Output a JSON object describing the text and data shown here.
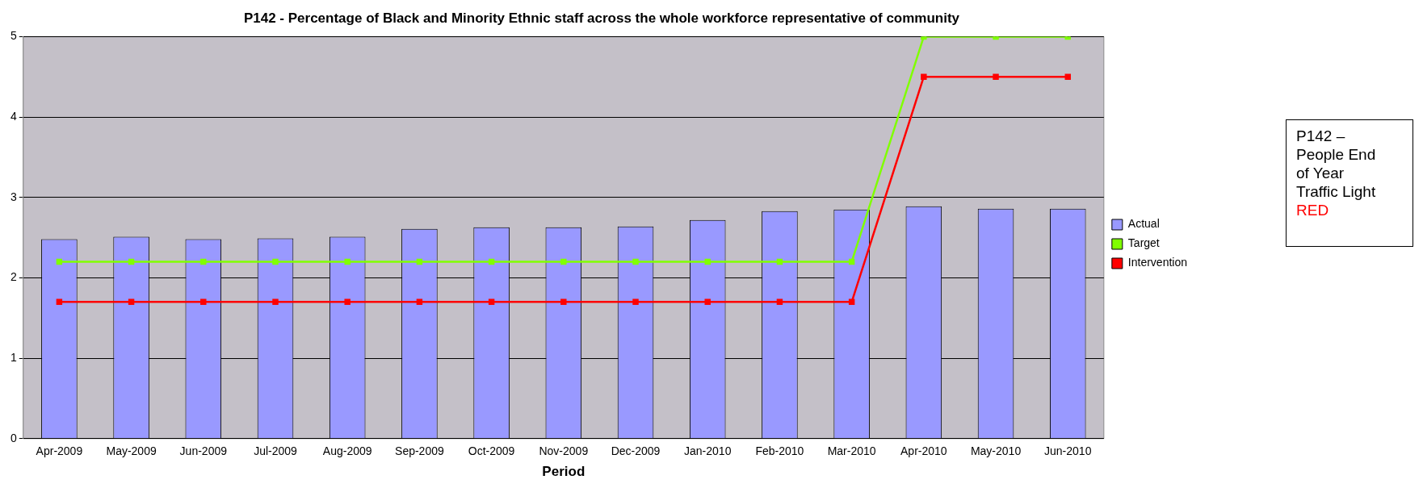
{
  "chart_data": {
    "type": "bar",
    "title": "P142 - Percentage of Black and Minority Ethnic staff across the whole workforce representative of community",
    "xlabel": "Period",
    "categories": [
      "Apr-2009",
      "May-2009",
      "Jun-2009",
      "Jul-2009",
      "Aug-2009",
      "Sep-2009",
      "Oct-2009",
      "Nov-2009",
      "Dec-2009",
      "Jan-2010",
      "Feb-2010",
      "Mar-2010",
      "Apr-2010",
      "May-2010",
      "Jun-2010"
    ],
    "series": [
      {
        "name": "Actual",
        "color": "#9999ff",
        "values": [
          2.48,
          2.51,
          2.48,
          2.49,
          2.51,
          2.61,
          2.63,
          2.63,
          2.64,
          2.72,
          2.83,
          2.85,
          2.89,
          2.86,
          2.86
        ]
      },
      {
        "name": "Target",
        "type": "line",
        "color": "#80ff00",
        "values": [
          2.2,
          2.2,
          2.2,
          2.2,
          2.2,
          2.2,
          2.2,
          2.2,
          2.2,
          2.2,
          2.2,
          2.2,
          5,
          5,
          5
        ]
      },
      {
        "name": "Intervention",
        "type": "line",
        "color": "#ff0000",
        "values": [
          1.7,
          1.7,
          1.7,
          1.7,
          1.7,
          1.7,
          1.7,
          1.7,
          1.7,
          1.7,
          1.7,
          1.7,
          4.5,
          4.5,
          4.5
        ]
      }
    ],
    "ylim": [
      0,
      5
    ],
    "yticks": [
      0,
      1,
      2,
      3,
      4,
      5
    ],
    "grid": "y",
    "legend": "right",
    "marker": "square",
    "line_style": "solid",
    "annotations": [
      "P142 – People End of Year Traffic Light",
      "RED"
    ]
  }
}
